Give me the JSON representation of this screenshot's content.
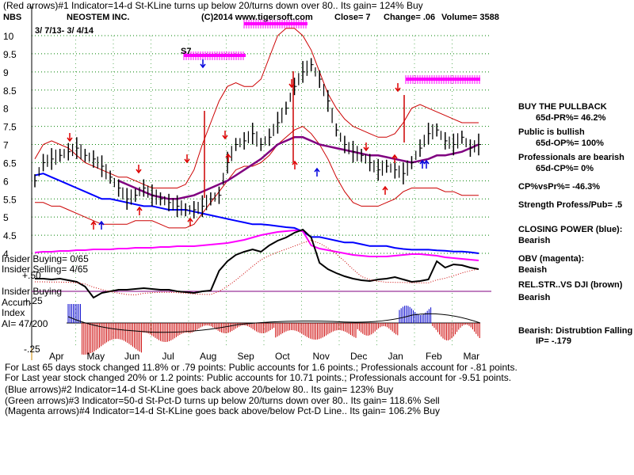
{
  "header": {
    "line1": "(Red arrows)#1 Indicator=14-d St-KLine turns up below 20/turns down over 80.. Its gain= 124% Buy",
    "ticker": "NBS",
    "company": "NEOSTEM INC.",
    "copyright": "(C)2014 www.tigersoft.com",
    "close": "Close=  7",
    "change": "Change= .06",
    "volume": "Volume= 3588",
    "date_range": "3/ 7/13- 3/ 4/14",
    "marker_s7": "S7"
  },
  "right_panel": [
    {
      "text": "BUY THE PULLBACK",
      "bold": true
    },
    {
      "text": "65d-PR%= 46.2%",
      "bold": true
    },
    {
      "text": "Public is bullish",
      "bold": true
    },
    {
      "text": "65d-OP%= 100%",
      "bold": true
    },
    {
      "text": "Professionals are bearish",
      "bold": true
    },
    {
      "text": "65d-CP%= 0%",
      "bold": true
    },
    {
      "text": "CP%vsPr%= -46.3%",
      "bold": true
    },
    {
      "text": "Strength Profess/Pub= .5",
      "bold": true
    },
    {
      "text": "CLOSING POWER (blue):",
      "bold": true
    },
    {
      "text": "Bearish",
      "bold": true
    },
    {
      "text": "OBV (magenta):",
      "bold": true
    },
    {
      "text": "Beaish",
      "bold": true
    },
    {
      "text": "REL.STR..VS DJI (brown)",
      "bold": true
    },
    {
      "text": "Bearish",
      "bold": true
    },
    {
      "text": "Bearish: Distrubtion Falling",
      "bold": true
    },
    {
      "text": "IP= -.179",
      "bold": true
    }
  ],
  "lower_labels": {
    "insider_buying_count": "Insider Buying= 0/65",
    "insider_selling_count": "Insider Selling= 4/65",
    "plus50": "+.50",
    "insider_buying": "Insider Buying",
    "accum": "Accum",
    "index": "Index",
    "ai": "AI= 47/200",
    "plus25": "+.25",
    "minus25": "-.25"
  },
  "footer": [
    "For Last 65 days stock changed  11.8% or  .79 points:  Public accounts for  1.6 points.;  Professionals account for -.81 points.",
    "For Last year stock changed  20% or  1.2 points:  Public accounts for  10.71 points.;  Professionals account for -9.51 points.",
    "(Blue arrows)#2 Indicator=14-d St-KLine goes back above 20/below 80.. Its gain= 123% Buy",
    "(Green arrows)#3 Indicator=50-d St-Pct-D turns up below 20/turns down over 80.. Its gain= 118.6% Sell",
    "(Magenta arrows)#4 Indicator=14-d St-KLine goes back above/below Pct-D Line.. Its gain= 106.2% Buy"
  ],
  "colors": {
    "price": "#000000",
    "bands": "#cc0000",
    "ma": "#800080",
    "closing_power": "#0000ff",
    "obv": "#ff00ff",
    "accum_pos": "#0000cc",
    "accum_neg": "#cc0000",
    "grid": "#008000",
    "signal_bar": "#ff00ff"
  },
  "chart_data": {
    "type": "line",
    "ticker": "NBS",
    "ylim": [
      4,
      10.3
    ],
    "y_ticks": [
      "10",
      "9.5",
      "9",
      "8.5",
      "8",
      "7.5",
      "7",
      "6.5",
      "6",
      "5.5",
      "5",
      "4.5",
      "4"
    ],
    "x_ticks": [
      "Apr",
      "May",
      "Jun",
      "Jul",
      "Aug",
      "Sep",
      "Oct",
      "Nov",
      "Dec",
      "Jan",
      "Feb",
      "Mar"
    ],
    "series": [
      {
        "role": "price_close",
        "values": [
          6.0,
          6.5,
          6.6,
          6.7,
          6.8,
          6.9,
          6.7,
          6.6,
          6.4,
          6.1,
          5.8,
          5.5,
          5.6,
          5.8,
          5.6,
          5.5,
          5.4,
          5.3,
          5.2,
          5.2,
          5.3,
          5.5,
          5.6,
          6.5,
          7.0,
          7.1,
          7.3,
          7.0,
          7.2,
          7.6,
          8.0,
          8.6,
          9.0,
          9.2,
          8.8,
          8.2,
          7.4,
          7.0,
          6.8,
          6.7,
          6.5,
          6.3,
          6.4,
          6.3,
          6.2,
          6.5,
          6.9,
          7.3,
          7.4,
          7.1,
          7.0,
          7.2,
          6.9,
          7.0
        ]
      },
      {
        "role": "upper_band",
        "values": [
          6.6,
          7.0,
          7.1,
          7.0,
          6.9,
          6.7,
          6.5,
          6.4,
          6.3,
          6.2,
          6.1,
          6.1,
          6.0,
          5.9,
          5.8,
          5.8,
          5.8,
          5.8,
          5.9,
          6.3,
          7.0,
          7.6,
          8.2,
          8.6,
          8.7,
          8.6,
          8.6,
          8.8,
          9.4,
          10.0,
          10.2,
          10.2,
          10.0,
          9.6,
          9.0,
          8.4,
          8.0,
          7.7,
          7.5,
          7.4,
          7.3,
          7.2,
          7.2,
          7.3,
          7.6,
          8.0,
          8.1,
          8.0,
          7.9,
          7.8,
          7.7,
          7.6,
          7.6,
          7.6
        ]
      },
      {
        "role": "lower_band",
        "values": [
          5.4,
          5.4,
          5.3,
          5.3,
          5.2,
          5.1,
          5.0,
          4.9,
          4.8,
          4.8,
          4.8,
          4.8,
          4.9,
          4.9,
          4.9,
          4.8,
          4.7,
          4.7,
          4.7,
          4.8,
          5.1,
          5.4,
          5.7,
          6.0,
          6.3,
          6.4,
          6.4,
          6.5,
          6.7,
          7.0,
          7.2,
          7.4,
          7.5,
          7.3,
          7.0,
          6.6,
          6.1,
          5.7,
          5.4,
          5.3,
          5.3,
          5.3,
          5.4,
          5.5,
          5.7,
          5.8,
          5.8,
          5.8,
          5.8,
          5.7,
          5.7,
          5.6,
          5.6,
          5.6
        ]
      },
      {
        "role": "moving_average",
        "start_index": 10,
        "values": [
          6.0,
          5.9,
          5.8,
          5.7,
          5.6,
          5.55,
          5.5,
          5.5,
          5.55,
          5.6,
          5.7,
          5.8,
          5.9,
          6.0,
          6.15,
          6.3,
          6.45,
          6.6,
          6.8,
          7.0,
          7.1,
          7.2,
          7.2,
          7.1,
          7.0,
          6.95,
          6.9,
          6.85,
          6.8,
          6.75,
          6.7,
          6.7,
          6.65,
          6.6,
          6.55,
          6.5,
          6.55,
          6.6,
          6.7,
          6.7,
          6.75,
          6.8,
          6.9,
          7.0
        ]
      }
    ],
    "annotations": [
      "S7"
    ]
  }
}
